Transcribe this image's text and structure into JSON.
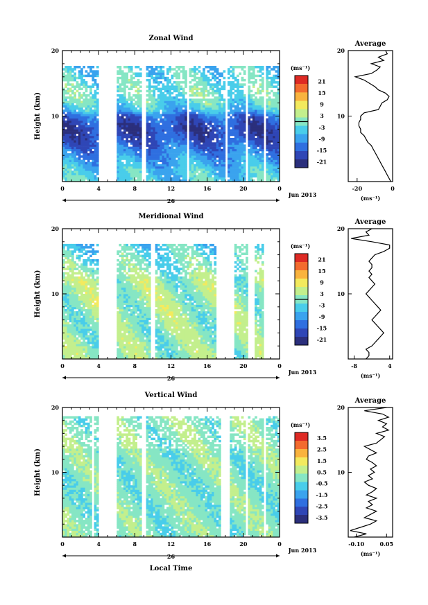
{
  "figure": {
    "month_label": "Jun 2013",
    "date_label": "26",
    "xlabel": "Local Time",
    "x_ticks": [
      "0",
      "4",
      "8",
      "12",
      "16",
      "20",
      "0"
    ],
    "ylabel": "Height (km)",
    "y_ticks": [
      "10",
      "20"
    ],
    "unit_label": "(ms⁻¹)",
    "avg_title": "Average",
    "colormap": [
      "#2b2f7c",
      "#2f46b6",
      "#2f6fe0",
      "#3aa3ee",
      "#49cdea",
      "#86e6c4",
      "#c3ef8d",
      "#f3ea5e",
      "#f9b33e",
      "#f36b2e",
      "#de2a24"
    ]
  },
  "chart_data": [
    {
      "type": "heatmap",
      "title": "Zonal Wind",
      "xlim": [
        0,
        24
      ],
      "ylim": [
        0,
        20
      ],
      "colorbar_ticks": [
        "21",
        "15",
        "9",
        "3",
        "-3",
        "-9",
        "-15",
        "-21"
      ],
      "colorbar_range": [
        -24,
        24
      ],
      "zero_line": 0,
      "data_gaps_hours": [
        [
          4.0,
          6.0
        ],
        [
          8.8,
          9.3
        ],
        [
          13.8,
          14.1
        ],
        [
          18.0,
          18.3
        ],
        [
          20.3,
          20.6
        ],
        [
          22.3,
          22.6
        ]
      ],
      "valid_height_km": [
        0,
        17.5
      ],
      "profile_model": {
        "base": [
          [
            0,
            -4
          ],
          [
            2,
            -6
          ],
          [
            4,
            -10
          ],
          [
            6,
            -15
          ],
          [
            8,
            -18
          ],
          [
            10,
            -14
          ],
          [
            11,
            -6
          ],
          [
            12,
            -3
          ],
          [
            14,
            -2
          ],
          [
            16,
            -4
          ],
          [
            17.5,
            -5
          ]
        ],
        "time_amplitude": 4
      }
    },
    {
      "type": "line",
      "title": "Average",
      "xlabel": "(ms⁻¹)",
      "x_ticks": [
        "-20",
        "0"
      ],
      "xlim": [
        -25,
        0
      ],
      "ylim": [
        0,
        20
      ],
      "y_ticks": [
        "10",
        "20"
      ],
      "series": [
        {
          "y": [
            0,
            0.5,
            1,
            1.5,
            2,
            2.5,
            3,
            3.5,
            4,
            4.5,
            5,
            5.5,
            6,
            6.5,
            7,
            7.5,
            8,
            8.5,
            9,
            9.5,
            10,
            10.5,
            11,
            11.5,
            12,
            12.5,
            13,
            13.5,
            14,
            14.5,
            15,
            15.5,
            16,
            16.5,
            17,
            17.5,
            18,
            18.5,
            19,
            19.5,
            20
          ],
          "x": [
            -1,
            -2,
            -3,
            -4,
            -5,
            -6,
            -7,
            -8,
            -9,
            -10,
            -11,
            -12,
            -14,
            -15,
            -16,
            -18,
            -18,
            -19,
            -19,
            -18,
            -18,
            -16,
            -8,
            -7,
            -6,
            -3,
            -2,
            -4,
            -8,
            -10,
            -13,
            -16,
            -21,
            -12,
            -9,
            -7,
            -12,
            -5,
            -8,
            -3,
            -4
          ]
        }
      ]
    },
    {
      "type": "heatmap",
      "title": "Meridional Wind",
      "xlim": [
        0,
        24
      ],
      "ylim": [
        0,
        20
      ],
      "colorbar_ticks": [
        "21",
        "15",
        "9",
        "3",
        "-3",
        "-9",
        "-15",
        "-21"
      ],
      "colorbar_range": [
        -24,
        24
      ],
      "zero_line": 0,
      "data_gaps_hours": [
        [
          4.0,
          6.0
        ],
        [
          9.8,
          10.2
        ],
        [
          17.0,
          19.0
        ],
        [
          20.6,
          21.2
        ],
        [
          22.3,
          24.0
        ]
      ],
      "valid_height_km": [
        0,
        17.5
      ],
      "profile_model": {
        "base": [
          [
            0,
            1
          ],
          [
            4,
            1
          ],
          [
            8,
            2
          ],
          [
            12,
            2
          ],
          [
            14,
            -2
          ],
          [
            16,
            -3
          ],
          [
            17.5,
            -5
          ]
        ],
        "time_amplitude": 4
      }
    },
    {
      "type": "line",
      "title": "Average",
      "xlabel": "(ms⁻¹)",
      "x_ticks": [
        "-8",
        "4"
      ],
      "xlim": [
        -10,
        5
      ],
      "ylim": [
        0,
        20
      ],
      "y_ticks": [
        "10",
        "20"
      ],
      "series": [
        {
          "y": [
            0,
            0.5,
            1,
            1.5,
            2,
            2.5,
            3,
            3.5,
            4,
            4.5,
            5,
            5.5,
            6,
            6.5,
            7,
            7.5,
            8,
            8.5,
            9,
            9.5,
            10,
            10.5,
            11,
            11.5,
            12,
            12.5,
            13,
            13.5,
            14,
            14.5,
            15,
            15.5,
            16,
            16.5,
            17,
            17.5,
            18,
            18.5,
            19,
            19.5,
            20
          ],
          "x": [
            -4,
            -3,
            -3,
            -4,
            -2,
            -1,
            0,
            1,
            2,
            1,
            0,
            -1,
            -2,
            -1,
            0,
            1,
            0,
            -1,
            -2,
            -3,
            -4,
            -3,
            -2,
            -1,
            -2,
            -3,
            -2,
            -3,
            -2,
            -2,
            -3,
            -2,
            -1,
            2,
            4,
            4,
            -2,
            -9,
            -3,
            -4,
            -2
          ]
        }
      ]
    },
    {
      "type": "heatmap",
      "title": "Vertical Wind",
      "xlim": [
        0,
        24
      ],
      "ylim": [
        0,
        20
      ],
      "colorbar_ticks": [
        "3.5",
        "2.5",
        "1.5",
        "0.5",
        "-0.5",
        "-1.5",
        "-2.5",
        "-3.5"
      ],
      "colorbar_range": [
        -4,
        4
      ],
      "zero_line": null,
      "data_gaps_hours": [
        [
          3.3,
          3.6
        ],
        [
          4.0,
          6.0
        ],
        [
          8.8,
          9.3
        ],
        [
          17.5,
          18.5
        ],
        [
          20.3,
          20.6
        ],
        [
          22.3,
          22.6
        ]
      ],
      "valid_height_km": [
        0,
        18.5
      ],
      "profile_model": {
        "base": [
          [
            0,
            0
          ],
          [
            20,
            0
          ]
        ],
        "time_amplitude": 0.5
      }
    },
    {
      "type": "line",
      "title": "Average",
      "xlabel": "(ms⁻¹)",
      "x_ticks": [
        "-0.10",
        "0.05"
      ],
      "xlim": [
        -0.14,
        0.08
      ],
      "ylim": [
        0,
        20
      ],
      "y_ticks": [
        "10",
        "20"
      ],
      "series": [
        {
          "y": [
            0,
            0.5,
            1,
            1.5,
            2,
            2.5,
            3,
            3.5,
            4,
            4.5,
            5,
            5.5,
            6,
            6.5,
            7,
            7.5,
            8,
            8.5,
            9,
            9.5,
            10,
            10.5,
            11,
            11.5,
            12,
            12.5,
            13,
            13.5,
            14,
            14.5,
            15,
            15.5,
            16,
            16.5,
            17,
            17.5,
            18,
            18.5,
            19,
            19.5,
            20
          ],
          "x": [
            -0.11,
            -0.05,
            -0.13,
            -0.08,
            -0.03,
            0.0,
            -0.06,
            -0.03,
            0.0,
            -0.05,
            -0.02,
            -0.04,
            0.0,
            -0.05,
            -0.02,
            0.0,
            -0.04,
            -0.06,
            -0.02,
            -0.04,
            -0.01,
            -0.03,
            0.0,
            -0.02,
            -0.05,
            -0.04,
            0.0,
            -0.03,
            -0.06,
            0.0,
            0.02,
            0.04,
            0.0,
            0.06,
            0.03,
            0.05,
            0.01,
            0.06,
            0.03,
            -0.06,
            0.05
          ]
        }
      ]
    }
  ]
}
